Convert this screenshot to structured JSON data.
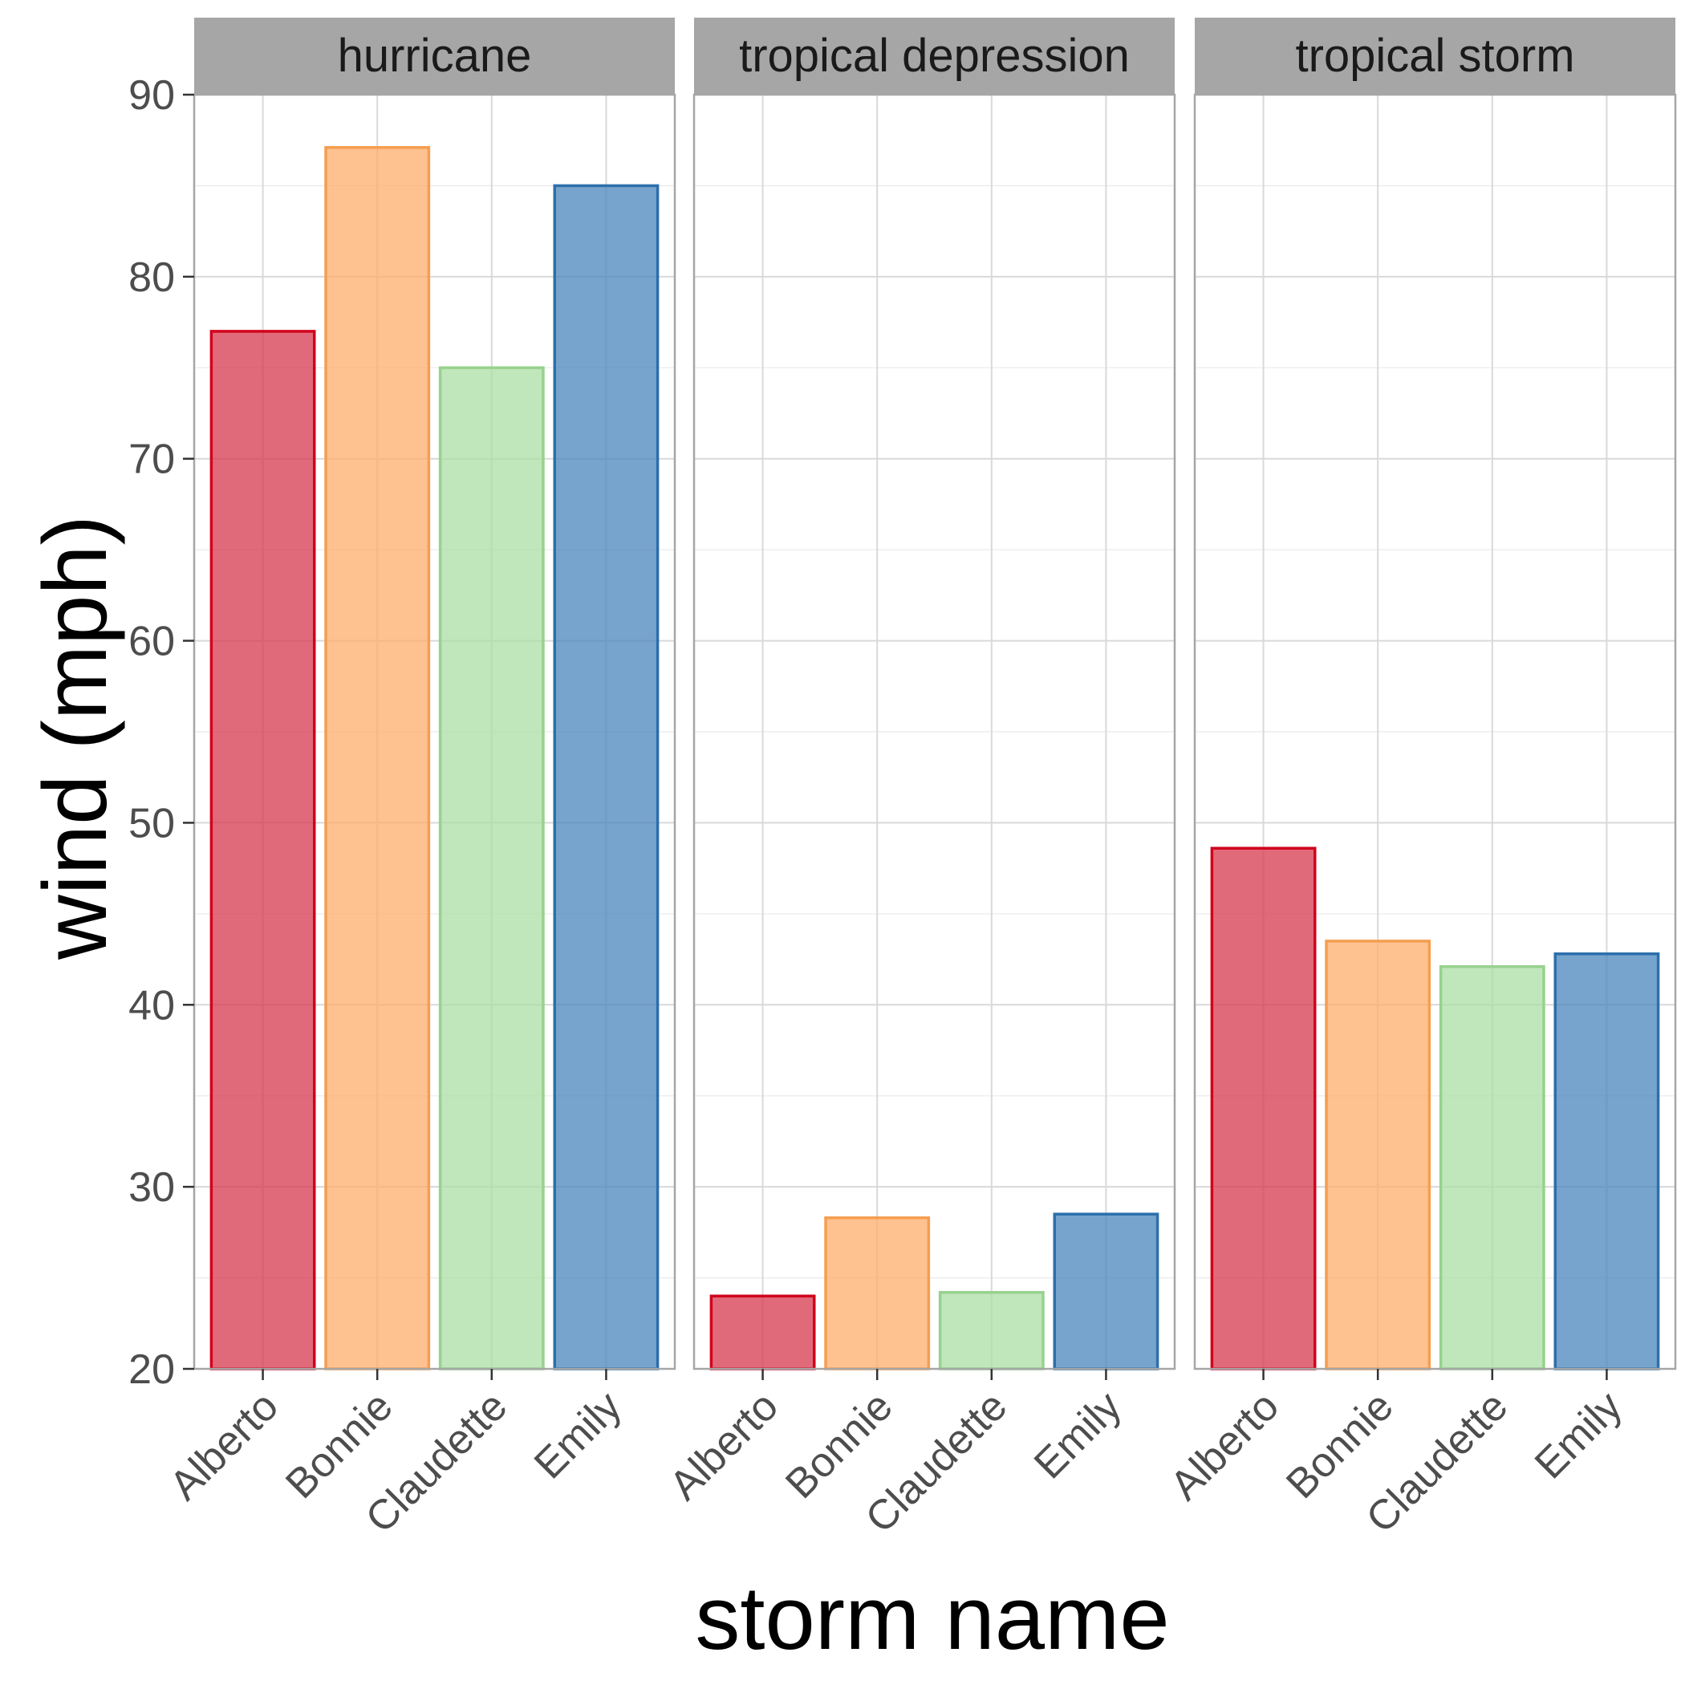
{
  "chart_data": {
    "type": "bar",
    "xlabel": "storm name",
    "ylabel": "wind (mph)",
    "ylim": [
      20,
      90
    ],
    "yticks": [
      20,
      30,
      40,
      50,
      60,
      70,
      80,
      90
    ],
    "categories": [
      "Alberto",
      "Bonnie",
      "Claudette",
      "Emily"
    ],
    "grid": true,
    "facets": [
      {
        "name": "hurricane",
        "values": [
          77,
          87.1,
          75,
          85
        ]
      },
      {
        "name": "tropical depression",
        "values": [
          24,
          28.3,
          24.2,
          28.5
        ]
      },
      {
        "name": "tropical storm",
        "values": [
          48.6,
          43.5,
          42.1,
          42.8
        ]
      }
    ],
    "colors": {
      "Alberto": {
        "fill": "#d7384d",
        "stroke": "#d0021b"
      },
      "Bonnie": {
        "fill": "#fdae6b",
        "stroke": "#f59e50"
      },
      "Claudette": {
        "fill": "#abdda4",
        "stroke": "#97d28e"
      },
      "Emily": {
        "fill": "#4a86bb",
        "stroke": "#2c6fab"
      }
    },
    "bar_alpha": 0.75,
    "strip_color": "#a6a6a6",
    "panel_border_color": "#a6a6a6"
  }
}
